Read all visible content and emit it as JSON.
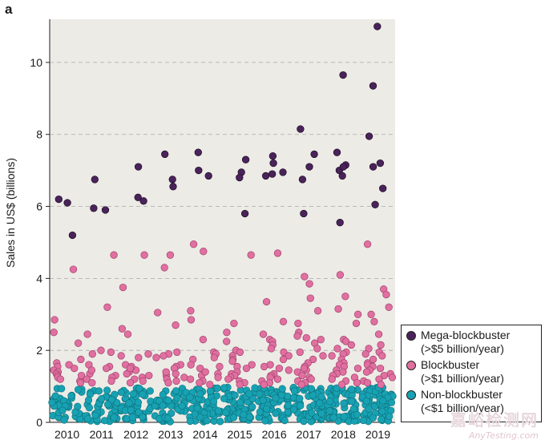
{
  "panel_label": "a",
  "watermark": {
    "cn": "嘉峪检测网",
    "en": "AnyTesting.com"
  },
  "colors": {
    "mega": "#4a235a",
    "block": "#e070a0",
    "non": "#17a2b3",
    "plot_bg": "#ecebe6",
    "grid": "#aaaaaa"
  },
  "chart_data": {
    "type": "scatter",
    "title": "",
    "xlabel": "",
    "ylabel": "Sales in US$ (billions)",
    "ylim": [
      0,
      11.2
    ],
    "yticks": [
      0,
      2,
      4,
      6,
      8,
      10
    ],
    "grid": "horizontal dashed",
    "legend_position": "right",
    "categories": [
      "2010",
      "2011",
      "2012",
      "2013",
      "2014",
      "2015",
      "2016",
      "2017",
      "2018",
      "2019"
    ],
    "series": [
      {
        "name": "Mega-blockbuster",
        "label_line2": "(>$5 billion/year)",
        "color_key": "mega",
        "points": {
          "2010": [
            6.2,
            6.1,
            5.2
          ],
          "2011": [
            5.95,
            5.9,
            6.75
          ],
          "2012": [
            7.1,
            6.25,
            6.15
          ],
          "2013": [
            7.45,
            6.75,
            6.55
          ],
          "2014": [
            7.5,
            7.0,
            6.85
          ],
          "2015": [
            7.3,
            6.95,
            6.8,
            5.8
          ],
          "2016": [
            7.4,
            7.2,
            6.9,
            6.85,
            6.95
          ],
          "2017": [
            8.15,
            7.45,
            7.1,
            6.75,
            5.8
          ],
          "2018": [
            9.65,
            7.5,
            7.15,
            7.0,
            6.85,
            7.1,
            5.55
          ],
          "2019": [
            11.0,
            9.35,
            7.95,
            7.2,
            7.1,
            6.5,
            6.05
          ]
        }
      },
      {
        "name": "Blockbuster",
        "label_line2": "(>$1 billion/year)",
        "color_key": "block",
        "points": {
          "2010": [
            4.25,
            2.85,
            2.5,
            2.2,
            1.75,
            1.65,
            1.6,
            1.55,
            1.45,
            1.4,
            1.35,
            1.3,
            1.25,
            1.2,
            1.15,
            1.1,
            1.3,
            1.5
          ],
          "2011": [
            4.65,
            3.2,
            2.45,
            2.0,
            1.95,
            1.9,
            1.6,
            1.55,
            1.5,
            1.35,
            1.3,
            1.25,
            1.2,
            1.15,
            1.1,
            1.45
          ],
          "2012": [
            4.65,
            3.75,
            2.6,
            2.45,
            1.9,
            1.85,
            1.8,
            1.6,
            1.45,
            1.4,
            1.35,
            1.3,
            1.25,
            1.2,
            1.15,
            1.1,
            1.55,
            1.5
          ],
          "2013": [
            4.65,
            4.3,
            3.05,
            2.7,
            1.95,
            1.9,
            1.85,
            1.8,
            1.6,
            1.55,
            1.5,
            1.35,
            1.3,
            1.25,
            1.2,
            1.15,
            1.1,
            1.4
          ],
          "2014": [
            4.95,
            4.75,
            3.1,
            2.85,
            2.3,
            1.95,
            1.9,
            1.8,
            1.75,
            1.6,
            1.55,
            1.5,
            1.35,
            1.3,
            1.25,
            1.2,
            1.15,
            1.1,
            1.05,
            1.4
          ],
          "2015": [
            4.65,
            2.75,
            2.5,
            2.25,
            2.0,
            1.95,
            1.85,
            1.75,
            1.7,
            1.6,
            1.55,
            1.5,
            1.4,
            1.35,
            1.3,
            1.25,
            1.2,
            1.15,
            1.1,
            1.05
          ],
          "2016": [
            4.7,
            3.35,
            2.8,
            2.45,
            2.3,
            2.25,
            2.15,
            2.05,
            1.95,
            1.85,
            1.75,
            1.6,
            1.55,
            1.45,
            1.35,
            1.3,
            1.25,
            1.2,
            1.15,
            1.1,
            1.05,
            1.5
          ],
          "2017": [
            4.05,
            3.85,
            3.45,
            3.1,
            2.75,
            2.5,
            2.4,
            2.35,
            2.3,
            2.2,
            2.05,
            1.95,
            1.85,
            1.75,
            1.65,
            1.55,
            1.45,
            1.4,
            1.3,
            1.25,
            1.2,
            1.15,
            1.1,
            1.05,
            1.5
          ],
          "2018": [
            4.1,
            3.5,
            3.15,
            3.0,
            2.75,
            2.3,
            2.25,
            2.15,
            2.05,
            1.95,
            1.9,
            1.85,
            1.75,
            1.65,
            1.6,
            1.55,
            1.45,
            1.4,
            1.35,
            1.3,
            1.25,
            1.2,
            1.15,
            1.1,
            1.05,
            1.5
          ],
          "2019": [
            4.95,
            3.7,
            3.55,
            3.2,
            3.0,
            2.8,
            2.45,
            2.15,
            2.05,
            1.95,
            1.9,
            1.85,
            1.75,
            1.65,
            1.6,
            1.55,
            1.45,
            1.4,
            1.35,
            1.3,
            1.25,
            1.2,
            1.15,
            1.1,
            1.05,
            1.5
          ]
        }
      },
      {
        "name": "Non-blockbuster",
        "label_line2": "(<$1 billion/year)",
        "color_key": "non",
        "points_per_year": {
          "2010": 42,
          "2011": 48,
          "2012": 52,
          "2013": 54,
          "2014": 56,
          "2015": 58,
          "2016": 60,
          "2017": 62,
          "2018": 64,
          "2019": 66
        },
        "range": [
          0.02,
          0.98
        ]
      }
    ]
  }
}
